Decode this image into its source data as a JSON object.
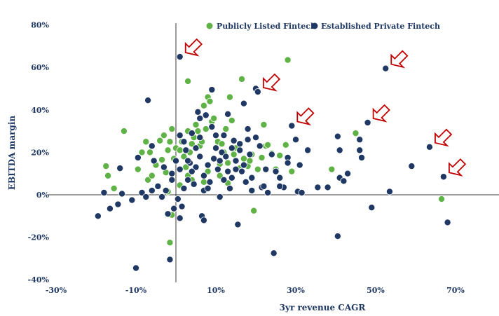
{
  "chart_data": {
    "type": "scatter",
    "xlabel": "3yr revenue CAGR",
    "ylabel": "EBITDA margin",
    "xlim": [
      -30,
      78
    ],
    "ylim": [
      -40,
      80
    ],
    "x_ticks": [
      -30,
      -10,
      10,
      30,
      50,
      70
    ],
    "x_tick_labels": [
      "-30%",
      "-10%",
      "10%",
      "30%",
      "50%",
      "70%"
    ],
    "y_ticks": [
      80,
      60,
      40,
      20,
      0,
      -20,
      -40
    ],
    "y_tick_labels": [
      "80%",
      "60%",
      "40%",
      "20%",
      "0%",
      "-20%",
      "-40%"
    ],
    "grid": false,
    "legend_position": "top",
    "series": [
      {
        "name": "Publicly Listed Fintech",
        "color": "#5fb346",
        "points": [
          [
            -17.5,
            13.5
          ],
          [
            -17,
            9
          ],
          [
            -15.5,
            3
          ],
          [
            -13,
            30
          ],
          [
            -9.5,
            12
          ],
          [
            -8.5,
            20
          ],
          [
            -7.5,
            25
          ],
          [
            -7,
            7
          ],
          [
            -6.5,
            20
          ],
          [
            -6,
            9
          ],
          [
            -5,
            14
          ],
          [
            -4,
            25.5
          ],
          [
            -3.5,
            16.5
          ],
          [
            -3,
            28
          ],
          [
            -2.5,
            10.5
          ],
          [
            -2,
            21
          ],
          [
            -1.5,
            25
          ],
          [
            -1,
            31
          ],
          [
            -0.5,
            17
          ],
          [
            0,
            22
          ],
          [
            1,
            21
          ],
          [
            1.5,
            25
          ],
          [
            2,
            18
          ],
          [
            2.5,
            13
          ],
          [
            3,
            30
          ],
          [
            3,
            53.5
          ],
          [
            3.5,
            20
          ],
          [
            4,
            24
          ],
          [
            4.5,
            27
          ],
          [
            5,
            33
          ],
          [
            5.5,
            30
          ],
          [
            6,
            23
          ],
          [
            6.5,
            25
          ],
          [
            7,
            42
          ],
          [
            7.5,
            31
          ],
          [
            8,
            46
          ],
          [
            8.5,
            44
          ],
          [
            9,
            34.5
          ],
          [
            9.5,
            36
          ],
          [
            10,
            28
          ],
          [
            10.5,
            25
          ],
          [
            11,
            14.5
          ],
          [
            11.5,
            24
          ],
          [
            12,
            20
          ],
          [
            12.5,
            31
          ],
          [
            13,
            15
          ],
          [
            13.5,
            46
          ],
          [
            14,
            35
          ],
          [
            14.5,
            19
          ],
          [
            15,
            22
          ],
          [
            16,
            12.5
          ],
          [
            16.5,
            54.5
          ],
          [
            17,
            17
          ],
          [
            18,
            13.5
          ],
          [
            18.5,
            16
          ],
          [
            19,
            19
          ],
          [
            19.5,
            -7.5
          ],
          [
            20.5,
            12
          ],
          [
            21.5,
            17.5
          ],
          [
            22,
            33
          ],
          [
            22.5,
            23
          ],
          [
            23,
            23.5
          ],
          [
            24,
            19.5
          ],
          [
            25,
            12
          ],
          [
            26,
            18.5
          ],
          [
            27.5,
            23.5
          ],
          [
            28,
            63.5
          ],
          [
            29,
            11
          ],
          [
            39,
            12
          ],
          [
            45,
            29
          ],
          [
            66.5,
            -2
          ],
          [
            -1,
            -9.5
          ],
          [
            -1.5,
            -22.5
          ],
          [
            -2,
            1.5
          ],
          [
            1,
            4.5
          ],
          [
            3,
            9
          ],
          [
            4,
            7
          ],
          [
            7,
            6
          ],
          [
            8,
            11
          ],
          [
            11,
            9
          ],
          [
            13,
            5.5
          ]
        ]
      },
      {
        "name": "Established Private Fintech",
        "color": "#1f3864",
        "points": [
          [
            -19.5,
            -10
          ],
          [
            -18,
            1
          ],
          [
            -16.5,
            -6.5
          ],
          [
            -14.5,
            -4.5
          ],
          [
            -14,
            12.5
          ],
          [
            -13.5,
            0.5
          ],
          [
            -11,
            -2.5
          ],
          [
            -10,
            -34.5
          ],
          [
            -9.5,
            17.5
          ],
          [
            -8.5,
            1
          ],
          [
            -7.5,
            -1
          ],
          [
            -7,
            44.5
          ],
          [
            -6,
            23
          ],
          [
            -6,
            2
          ],
          [
            -5.5,
            16
          ],
          [
            -4.5,
            4
          ],
          [
            -3.5,
            -1
          ],
          [
            -3,
            13
          ],
          [
            -2.5,
            2
          ],
          [
            -2,
            -9
          ],
          [
            -1.5,
            -30.5
          ],
          [
            -1,
            7
          ],
          [
            -0.5,
            -6.5
          ],
          [
            0,
            16
          ],
          [
            0.5,
            -2
          ],
          [
            1,
            -11
          ],
          [
            1,
            65
          ],
          [
            1,
            12
          ],
          [
            1.5,
            -5.5
          ],
          [
            2,
            3
          ],
          [
            2.5,
            21
          ],
          [
            3,
            7
          ],
          [
            3.5,
            15
          ],
          [
            4,
            29
          ],
          [
            4.5,
            5
          ],
          [
            5,
            13
          ],
          [
            5.5,
            39
          ],
          [
            6,
            18
          ],
          [
            6.5,
            -10
          ],
          [
            7,
            -12
          ],
          [
            7,
            2
          ],
          [
            7.5,
            37.5
          ],
          [
            8,
            14
          ],
          [
            8.5,
            6
          ],
          [
            9,
            49.5
          ],
          [
            9.5,
            17
          ],
          [
            10,
            28
          ],
          [
            10.5,
            12
          ],
          [
            11,
            -1
          ],
          [
            11.5,
            20
          ],
          [
            12,
            7
          ],
          [
            12.5,
            18
          ],
          [
            13,
            38
          ],
          [
            13.5,
            3
          ],
          [
            14,
            22
          ],
          [
            14.5,
            25.5
          ],
          [
            15,
            16
          ],
          [
            15.5,
            -14
          ],
          [
            16,
            21
          ],
          [
            16.5,
            11
          ],
          [
            17,
            43
          ],
          [
            17.5,
            6
          ],
          [
            18,
            26
          ],
          [
            18.5,
            19
          ],
          [
            19,
            8
          ],
          [
            20,
            50
          ],
          [
            20.5,
            48.5
          ],
          [
            21,
            23
          ],
          [
            21.5,
            3.5
          ],
          [
            22.5,
            12
          ],
          [
            23,
            1
          ],
          [
            24.5,
            -27.5
          ],
          [
            25,
            11
          ],
          [
            26,
            8
          ],
          [
            27,
            3.5
          ],
          [
            28,
            17.5
          ],
          [
            29,
            32.5
          ],
          [
            30,
            26
          ],
          [
            30.5,
            1.5
          ],
          [
            31,
            14
          ],
          [
            31.5,
            1
          ],
          [
            33,
            21
          ],
          [
            35.5,
            3.5
          ],
          [
            38,
            3.5
          ],
          [
            40.5,
            -19.5
          ],
          [
            40.5,
            27.5
          ],
          [
            41,
            21
          ],
          [
            41,
            8
          ],
          [
            42,
            6.5
          ],
          [
            43,
            10
          ],
          [
            46,
            26
          ],
          [
            46,
            21
          ],
          [
            46.5,
            17.5
          ],
          [
            48,
            34
          ],
          [
            49,
            -6
          ],
          [
            52.5,
            59.5
          ],
          [
            53.5,
            1.5
          ],
          [
            59,
            13.5
          ],
          [
            63.5,
            22.5
          ],
          [
            67,
            8.5
          ],
          [
            68,
            -13
          ],
          [
            6,
            36
          ],
          [
            9,
            32
          ],
          [
            3,
            16
          ],
          [
            5,
            22
          ],
          [
            7,
            9
          ],
          [
            12,
            28
          ],
          [
            14,
            8
          ],
          [
            16,
            24
          ],
          [
            19,
            2
          ],
          [
            22,
            4
          ],
          [
            8,
            3
          ],
          [
            10,
            22
          ],
          [
            4,
            11
          ],
          [
            2,
            25
          ],
          [
            -1,
            10
          ],
          [
            1,
            28
          ],
          [
            6,
            27
          ],
          [
            11,
            16
          ],
          [
            13,
            11
          ],
          [
            15,
            12
          ],
          [
            17,
            14
          ],
          [
            18,
            31
          ],
          [
            20,
            27
          ],
          [
            24,
            19
          ],
          [
            26,
            4
          ],
          [
            28,
            15
          ]
        ]
      }
    ],
    "annotations": [
      {
        "type": "arrow",
        "color": "#c00000",
        "target": [
          1,
          65
        ]
      },
      {
        "type": "arrow",
        "color": "#c00000",
        "target": [
          20.5,
          48.5
        ]
      },
      {
        "type": "arrow",
        "color": "#c00000",
        "target": [
          29,
          32.5
        ]
      },
      {
        "type": "arrow",
        "color": "#c00000",
        "target": [
          48,
          34
        ]
      },
      {
        "type": "arrow",
        "color": "#c00000",
        "target": [
          52.5,
          59.5
        ]
      },
      {
        "type": "arrow",
        "color": "#c00000",
        "target": [
          63.5,
          22.5
        ]
      },
      {
        "type": "arrow",
        "color": "#c00000",
        "target": [
          67,
          8.5
        ]
      }
    ]
  }
}
